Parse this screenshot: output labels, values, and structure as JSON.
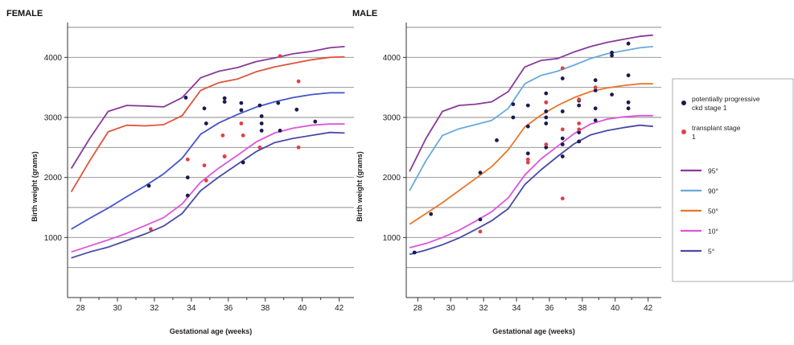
{
  "chart_data": [
    {
      "type": "scatter",
      "title": "FEMALE",
      "xlabel": "Gestational age (weeks)",
      "ylabel": "Birth weight (grams)",
      "xlim": [
        27.3,
        42.8
      ],
      "ylim": [
        0,
        4500
      ],
      "xticks": [
        28,
        30,
        32,
        34,
        36,
        38,
        40,
        42
      ],
      "yticks": [
        1000,
        2000,
        3000,
        4000
      ],
      "grid": "horizontal every 500 g",
      "percentile_curves": [
        {
          "name": "95°",
          "color": "#8a3a9a",
          "x": [
            27.5,
            28.5,
            29.5,
            30.5,
            31.5,
            32.5,
            33.5,
            34.5,
            35.5,
            36.5,
            37.5,
            38.5,
            39.5,
            40.5,
            41.5,
            42.3
          ],
          "y": [
            2150,
            2650,
            3100,
            3200,
            3190,
            3175,
            3330,
            3660,
            3770,
            3830,
            3930,
            3990,
            4060,
            4100,
            4160,
            4180
          ]
        },
        {
          "name": "90°",
          "color": "#e0533a",
          "x": [
            27.5,
            28.5,
            29.5,
            30.5,
            31.5,
            32.5,
            33.5,
            34.5,
            35.5,
            36.5,
            37.5,
            38.5,
            39.5,
            40.5,
            41.5,
            42.3
          ],
          "y": [
            1760,
            2280,
            2760,
            2870,
            2860,
            2880,
            3030,
            3450,
            3580,
            3640,
            3760,
            3840,
            3900,
            3960,
            4000,
            4010
          ]
        },
        {
          "name": "50°",
          "color": "#4455cc",
          "x": [
            27.5,
            28.5,
            29.5,
            30.5,
            31.5,
            32.5,
            33.5,
            34.5,
            35.5,
            36.5,
            37.5,
            38.5,
            39.5,
            40.5,
            41.5,
            42.3
          ],
          "y": [
            1140,
            1320,
            1490,
            1680,
            1860,
            2060,
            2320,
            2720,
            2910,
            3050,
            3170,
            3260,
            3330,
            3380,
            3410,
            3410
          ]
        },
        {
          "name": "10°",
          "color": "#dd55dd",
          "x": [
            27.5,
            28.5,
            29.5,
            30.5,
            31.5,
            32.5,
            33.5,
            34.5,
            35.5,
            36.5,
            37.5,
            38.5,
            39.5,
            40.5,
            41.5,
            42.3
          ],
          "y": [
            760,
            860,
            960,
            1070,
            1200,
            1330,
            1560,
            1920,
            2160,
            2370,
            2590,
            2740,
            2820,
            2870,
            2890,
            2890
          ]
        },
        {
          "name": "5°",
          "color": "#4a4aa8",
          "x": [
            27.5,
            28.5,
            29.5,
            30.5,
            31.5,
            32.5,
            33.5,
            34.5,
            35.5,
            36.5,
            37.5,
            38.5,
            39.5,
            40.5,
            41.5,
            42.3
          ],
          "y": [
            660,
            760,
            840,
            950,
            1060,
            1190,
            1400,
            1780,
            2010,
            2220,
            2430,
            2580,
            2650,
            2700,
            2750,
            2740
          ]
        }
      ],
      "series": [
        {
          "name": "potentially progressive ckd stage 1",
          "color": "#1a1a50",
          "points": [
            [
              31.7,
              1860
            ],
            [
              33.7,
              3330
            ],
            [
              33.8,
              2000
            ],
            [
              33.8,
              1700
            ],
            [
              34.7,
              3150
            ],
            [
              34.8,
              2900
            ],
            [
              35.8,
              3320
            ],
            [
              35.8,
              3260
            ],
            [
              35.8,
              2350
            ],
            [
              36.7,
              3240
            ],
            [
              36.7,
              3120
            ],
            [
              36.8,
              2250
            ],
            [
              37.7,
              3200
            ],
            [
              37.8,
              3020
            ],
            [
              37.8,
              2900
            ],
            [
              37.8,
              2780
            ],
            [
              38.7,
              3240
            ],
            [
              38.8,
              2780
            ],
            [
              39.7,
              3130
            ],
            [
              40.7,
              2930
            ]
          ]
        },
        {
          "name": "transplant stage 1",
          "color": "#e0404a",
          "points": [
            [
              31.8,
              1140
            ],
            [
              33.8,
              2300
            ],
            [
              34.7,
              2200
            ],
            [
              34.8,
              1950
            ],
            [
              35.7,
              2700
            ],
            [
              35.8,
              2350
            ],
            [
              36.7,
              2900
            ],
            [
              36.8,
              2700
            ],
            [
              37.7,
              2500
            ],
            [
              38.8,
              4020
            ],
            [
              39.8,
              3600
            ],
            [
              39.8,
              2500
            ]
          ]
        }
      ]
    },
    {
      "type": "scatter",
      "title": "MALE",
      "xlabel": "Gestational age (weeks)",
      "ylabel": "Birth weight (grams)",
      "xlim": [
        27.3,
        42.8
      ],
      "ylim": [
        0,
        4500
      ],
      "xticks": [
        28,
        30,
        32,
        34,
        36,
        38,
        40,
        42
      ],
      "yticks": [
        1000,
        2000,
        3000,
        4000
      ],
      "grid": "horizontal every 500 g",
      "legend": {
        "position": "right",
        "groups": [
          {
            "label": "potentially progressive ckd stage 1",
            "color": "#1a1a50",
            "marker": "dot"
          },
          {
            "label": "transplant stage 1",
            "color": "#e0404a",
            "marker": "dot"
          }
        ],
        "lines": [
          {
            "label": "95°",
            "color": "#8a3a9a"
          },
          {
            "label": "90°",
            "color": "#66aadd"
          },
          {
            "label": "50°",
            "color": "#e8762a"
          },
          {
            "label": "10°",
            "color": "#dd55dd"
          },
          {
            "label": "5°",
            "color": "#4a4aa8"
          }
        ]
      },
      "percentile_curves": [
        {
          "name": "95°",
          "color": "#8a3a9a",
          "x": [
            27.5,
            28.5,
            29.5,
            30.5,
            31.5,
            32.5,
            33.5,
            34.5,
            35.5,
            36.5,
            37.5,
            38.5,
            39.5,
            40.5,
            41.5,
            42.3
          ],
          "y": [
            2100,
            2650,
            3100,
            3200,
            3220,
            3260,
            3430,
            3840,
            3950,
            3980,
            4090,
            4180,
            4250,
            4300,
            4350,
            4370
          ]
        },
        {
          "name": "90°",
          "color": "#66aadd",
          "x": [
            27.5,
            28.5,
            29.5,
            30.5,
            31.5,
            32.5,
            33.5,
            34.5,
            35.5,
            36.5,
            37.5,
            38.5,
            39.5,
            40.5,
            41.5,
            42.3
          ],
          "y": [
            1780,
            2280,
            2700,
            2810,
            2880,
            2950,
            3150,
            3560,
            3700,
            3770,
            3870,
            3980,
            4060,
            4110,
            4160,
            4180
          ]
        },
        {
          "name": "50°",
          "color": "#e8762a",
          "x": [
            27.5,
            28.5,
            29.5,
            30.5,
            31.5,
            32.5,
            33.5,
            34.5,
            35.5,
            36.5,
            37.5,
            38.5,
            39.5,
            40.5,
            41.5,
            42.3
          ],
          "y": [
            1220,
            1400,
            1580,
            1780,
            1980,
            2180,
            2460,
            2840,
            3040,
            3200,
            3330,
            3430,
            3490,
            3530,
            3560,
            3560
          ]
        },
        {
          "name": "10°",
          "color": "#dd55dd",
          "x": [
            27.5,
            28.5,
            29.5,
            30.5,
            31.5,
            32.5,
            33.5,
            34.5,
            35.5,
            36.5,
            37.5,
            38.5,
            39.5,
            40.5,
            41.5,
            42.3
          ],
          "y": [
            830,
            900,
            1000,
            1120,
            1270,
            1430,
            1660,
            2040,
            2310,
            2520,
            2730,
            2890,
            2970,
            3010,
            3030,
            3030
          ]
        },
        {
          "name": "5°",
          "color": "#4a4aa8",
          "x": [
            27.5,
            28.5,
            29.5,
            30.5,
            31.5,
            32.5,
            33.5,
            34.5,
            35.5,
            36.5,
            37.5,
            38.5,
            39.5,
            40.5,
            41.5,
            42.3
          ],
          "y": [
            720,
            790,
            880,
            990,
            1130,
            1280,
            1480,
            1880,
            2130,
            2350,
            2560,
            2710,
            2780,
            2830,
            2870,
            2850
          ]
        }
      ],
      "series": [
        {
          "name": "potentially progressive ckd stage 1",
          "color": "#1a1a50",
          "points": [
            [
              27.8,
              750
            ],
            [
              28.8,
              1390
            ],
            [
              31.8,
              2080
            ],
            [
              31.8,
              1300
            ],
            [
              32.8,
              2620
            ],
            [
              33.8,
              3220
            ],
            [
              33.8,
              3000
            ],
            [
              34.7,
              3200
            ],
            [
              34.7,
              2850
            ],
            [
              34.7,
              2400
            ],
            [
              35.8,
              3400
            ],
            [
              35.8,
              3250
            ],
            [
              35.8,
              3100
            ],
            [
              35.8,
              3000
            ],
            [
              35.8,
              2900
            ],
            [
              35.8,
              2500
            ],
            [
              36.8,
              3650
            ],
            [
              36.8,
              3100
            ],
            [
              36.8,
              2650
            ],
            [
              36.8,
              2550
            ],
            [
              36.8,
              2350
            ],
            [
              37.8,
              3280
            ],
            [
              37.8,
              3200
            ],
            [
              37.8,
              2750
            ],
            [
              37.8,
              2600
            ],
            [
              38.8,
              3620
            ],
            [
              38.8,
              3450
            ],
            [
              38.8,
              3150
            ],
            [
              38.8,
              2950
            ],
            [
              39.8,
              4080
            ],
            [
              39.8,
              4030
            ],
            [
              39.8,
              3380
            ],
            [
              40.8,
              4230
            ],
            [
              40.8,
              3700
            ],
            [
              40.8,
              3250
            ],
            [
              40.8,
              3150
            ]
          ]
        },
        {
          "name": "transplant stage 1",
          "color": "#e0404a",
          "points": [
            [
              31.8,
              1100
            ],
            [
              34.7,
              2300
            ],
            [
              34.7,
              2250
            ],
            [
              35.8,
              3250
            ],
            [
              35.8,
              2550
            ],
            [
              36.8,
              3820
            ],
            [
              36.8,
              2800
            ],
            [
              36.8,
              1650
            ],
            [
              37.8,
              3300
            ],
            [
              37.8,
              2900
            ],
            [
              37.8,
              2800
            ],
            [
              38.8,
              3500
            ]
          ]
        }
      ]
    }
  ]
}
